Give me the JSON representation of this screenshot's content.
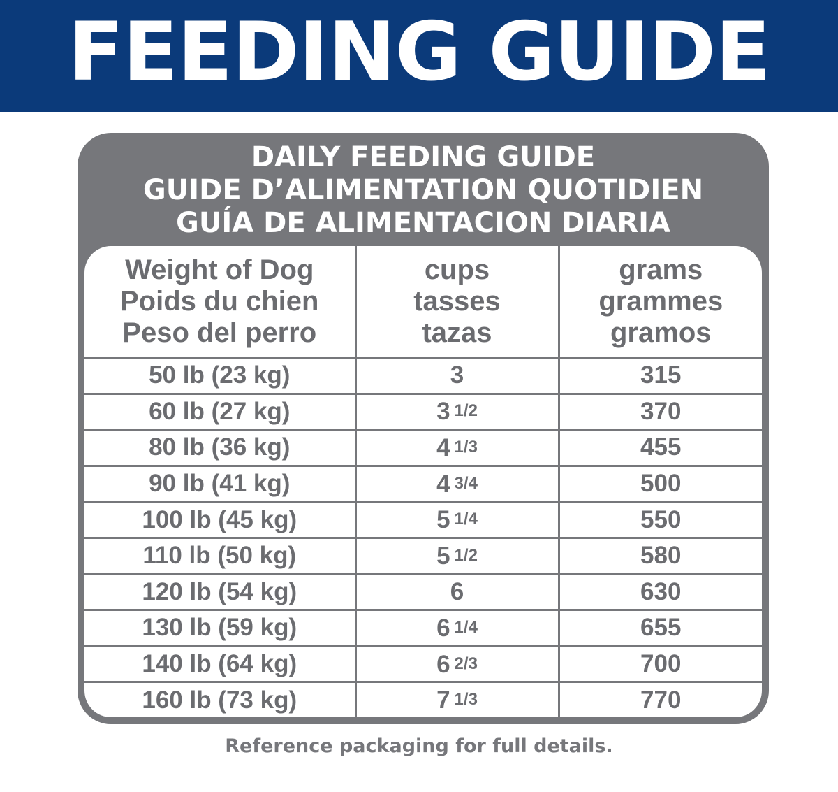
{
  "banner": {
    "title": "FEEDING GUIDE"
  },
  "card": {
    "heading_lines": [
      "DAILY FEEDING GUIDE",
      "GUIDE D’ALIMENTATION QUOTIDIEN",
      "GUÍA DE ALIMENTACION DIARIA"
    ]
  },
  "table": {
    "columns": [
      {
        "lines": [
          "Weight of Dog",
          "Poids du chien",
          "Peso del perro"
        ]
      },
      {
        "lines": [
          "cups",
          "tasses",
          "tazas"
        ]
      },
      {
        "lines": [
          "grams",
          "grammes",
          "gramos"
        ]
      }
    ],
    "rows": [
      {
        "weight": "50 lb (23 kg)",
        "cups_whole": "3",
        "cups_frac": "",
        "grams": "315"
      },
      {
        "weight": "60 lb (27 kg)",
        "cups_whole": "3",
        "cups_frac": "1/2",
        "grams": "370"
      },
      {
        "weight": "80 lb (36 kg)",
        "cups_whole": "4",
        "cups_frac": "1/3",
        "grams": "455"
      },
      {
        "weight": "90 lb (41 kg)",
        "cups_whole": "4",
        "cups_frac": "3/4",
        "grams": "500"
      },
      {
        "weight": "100 lb (45 kg)",
        "cups_whole": "5",
        "cups_frac": "1/4",
        "grams": "550"
      },
      {
        "weight": "110 lb (50 kg)",
        "cups_whole": "5",
        "cups_frac": "1/2",
        "grams": "580"
      },
      {
        "weight": "120 lb (54 kg)",
        "cups_whole": "6",
        "cups_frac": "",
        "grams": "630"
      },
      {
        "weight": "130 lb (59 kg)",
        "cups_whole": "6",
        "cups_frac": "1/4",
        "grams": "655"
      },
      {
        "weight": "140 lb (64 kg)",
        "cups_whole": "6",
        "cups_frac": "2/3",
        "grams": "700"
      },
      {
        "weight": "160 lb (73 kg)",
        "cups_whole": "7",
        "cups_frac": "1/3",
        "grams": "770"
      }
    ]
  },
  "footer": {
    "note": "Reference packaging for full details."
  },
  "colors": {
    "banner_blue": "#0b3a7a",
    "card_gray": "#76777b",
    "text_gray": "#6b6c70"
  }
}
